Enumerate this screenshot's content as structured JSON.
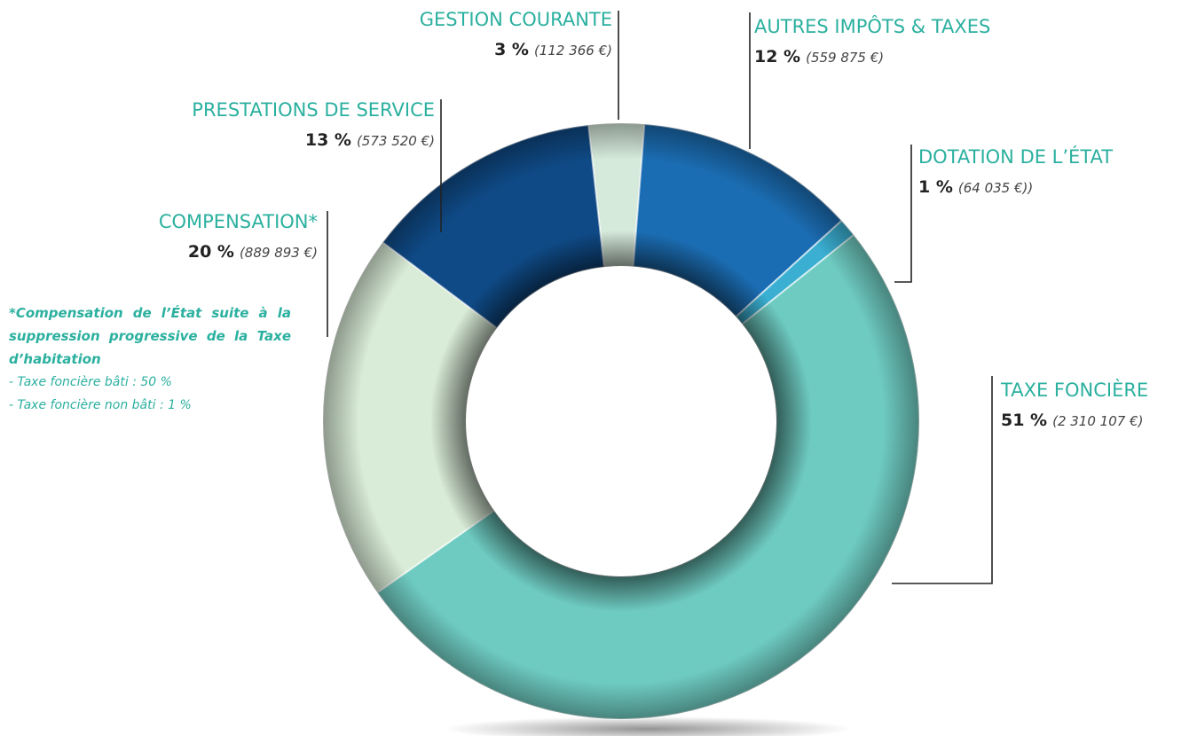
{
  "chart_data": {
    "type": "pie",
    "categories": [
      "GESTION COURANTE",
      "AUTRES IMPÔTS & TAXES",
      "DOTATION DE L’ÉTAT",
      "TAXE FONCIÈRE",
      "COMPENSATION*",
      "PRESTATIONS DE SERVICE"
    ],
    "values": [
      3,
      12,
      1,
      51,
      20,
      13
    ],
    "value_labels": [
      "3 %",
      "12 %",
      "1 %",
      "51 %",
      "20 %",
      "13 %"
    ],
    "amount_labels": [
      "(112 366 €)",
      "(559 875 €)",
      "(64 035 €))",
      "(2 310 107 €)",
      "(889 893 €)",
      "(573 520 €)"
    ],
    "colors": [
      "#d6eadb",
      "#1b6db3",
      "#3aafd2",
      "#6ecbc1",
      "#d9ecd7",
      "#0f4a86"
    ],
    "note": {
      "text": "*Compensation de l’État suite à la suppression progressive de la Taxe d’habitation",
      "lines": [
        "- Taxe foncière bâti : 50 %",
        "- Taxe foncière non bâti : 1 %"
      ]
    }
  }
}
